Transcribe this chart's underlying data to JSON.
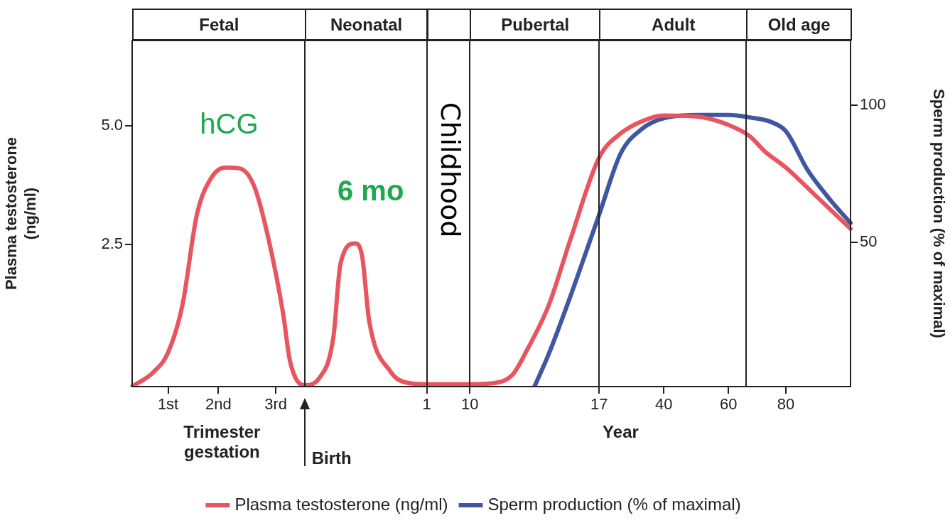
{
  "chart_data": {
    "type": "line",
    "xlabel": "Year",
    "ylabel": "Plasma testosterone\n(ng/ml)",
    "y2label": "Sperm production (% of maximal)",
    "categories": [
      null,
      null,
      null,
      null,
      null,
      "1st",
      null,
      null,
      null,
      null,
      null,
      null,
      "2nd",
      null,
      null,
      null,
      null,
      null,
      null,
      null,
      "3rd",
      null,
      null,
      null,
      null,
      null,
      null,
      null,
      null,
      null,
      null,
      null,
      null,
      null,
      null,
      null,
      null,
      null,
      null,
      null,
      null,
      "1",
      null,
      null,
      null,
      null,
      null,
      "10",
      null,
      null,
      null,
      null,
      null,
      null,
      null,
      null,
      null,
      null,
      null,
      null,
      null,
      null,
      null,
      null,
      null,
      "17",
      null,
      null,
      null,
      null,
      null,
      null,
      null,
      null,
      "40",
      null,
      null,
      null,
      null,
      null,
      null,
      null,
      null,
      "60",
      null,
      null,
      null,
      null,
      null,
      null,
      null,
      "80",
      null,
      null,
      null,
      null,
      null,
      null,
      null,
      null,
      null
    ],
    "ylim": [
      -0.5,
      6.8
    ],
    "yticks": [
      {
        "value": 2.5,
        "label": "2.5"
      },
      {
        "value": 5,
        "label": "5.0"
      }
    ],
    "y2lim": [
      -2.4,
      123.5
    ],
    "y2ticks": [
      50,
      100
    ],
    "series": [
      {
        "name": "Plasma testosterone (ng/ml)",
        "color": "#e8555f",
        "values": [
          -0.5,
          null,
          null,
          -0.19,
          null,
          0.22,
          null,
          1.22,
          null,
          3.12,
          null,
          3.9,
          null,
          4.12,
          null,
          4.1,
          null,
          3.72,
          null,
          2.6,
          null,
          1.05,
          0.02,
          null,
          -0.47,
          null,
          -0.33,
          null,
          0.53,
          2.09,
          null,
          2.52,
          2.26,
          0.88,
          null,
          null,
          -0.19,
          null,
          -0.41,
          null,
          null,
          -0.45,
          null,
          null,
          null,
          null,
          null,
          -0.45,
          null,
          null,
          null,
          -0.41,
          null,
          -0.24,
          null,
          0.28,
          null,
          null,
          1.22,
          null,
          null,
          2.6,
          null,
          null,
          null,
          4.33,
          null,
          null,
          4.84,
          null,
          null,
          5.1,
          null,
          null,
          5.22,
          null,
          null,
          null,
          null,
          5.19,
          null,
          null,
          null,
          5.02,
          null,
          null,
          4.78,
          null,
          4.47,
          null,
          null,
          4.12,
          null,
          null,
          null,
          3.55,
          null,
          null,
          null,
          null,
          2.83
        ]
      },
      {
        "name": "Sperm production (% of maximal)",
        "color": "#3f57a0",
        "axis": "y2",
        "values": [
          null,
          null,
          null,
          null,
          null,
          null,
          null,
          null,
          null,
          null,
          null,
          null,
          null,
          null,
          null,
          null,
          null,
          null,
          null,
          null,
          null,
          null,
          null,
          null,
          null,
          null,
          null,
          null,
          null,
          null,
          null,
          null,
          null,
          null,
          null,
          null,
          null,
          null,
          null,
          null,
          null,
          null,
          null,
          null,
          null,
          null,
          null,
          null,
          null,
          null,
          null,
          null,
          null,
          null,
          null,
          null,
          -2.4,
          null,
          9.5,
          null,
          null,
          30.4,
          null,
          null,
          null,
          60.1,
          null,
          null,
          82.4,
          null,
          null,
          91.4,
          null,
          null,
          95.2,
          null,
          null,
          null,
          null,
          96.4,
          null,
          null,
          null,
          96.4,
          null,
          null,
          95.5,
          null,
          null,
          93.8,
          null,
          90.5,
          null,
          null,
          76.5,
          null,
          null,
          66.1,
          null,
          null,
          57.1
        ]
      }
    ],
    "annotations": [
      "Fetal",
      "Neonatal",
      "Childhood",
      "Pubertal",
      "Adult",
      "Old age",
      "hCG",
      "6 mo",
      "Trimester\ngestation",
      "Birth"
    ],
    "legend": "bottom",
    "marker": "none",
    "line_style": "solid"
  }
}
